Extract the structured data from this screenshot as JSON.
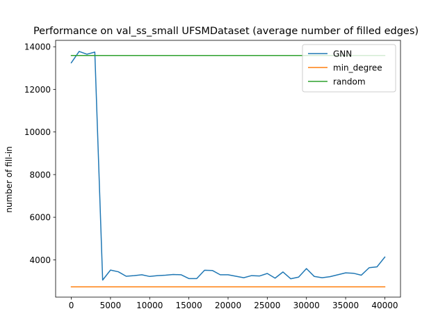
{
  "chart_data": {
    "type": "line",
    "title": "Performance on val_ss_small UFSMDataset (average number of filled edges)",
    "xlabel": "",
    "ylabel": "number of fill-in",
    "xlim": [
      -2000,
      42000
    ],
    "ylim": [
      2250,
      14300
    ],
    "xticks": [
      0,
      5000,
      10000,
      15000,
      20000,
      25000,
      30000,
      35000,
      40000
    ],
    "yticks": [
      4000,
      6000,
      8000,
      10000,
      12000,
      14000
    ],
    "grid": false,
    "legend_position": "top-right",
    "series": [
      {
        "name": "GNN",
        "color": "#1f77b4",
        "x": [
          0,
          1000,
          2000,
          3000,
          4000,
          5000,
          6000,
          7000,
          8000,
          9000,
          10000,
          11000,
          12000,
          13000,
          14000,
          15000,
          16000,
          17000,
          18000,
          19000,
          20000,
          21000,
          22000,
          23000,
          24000,
          25000,
          26000,
          27000,
          28000,
          29000,
          30000,
          31000,
          32000,
          33000,
          34000,
          35000,
          36000,
          37000,
          38000,
          39000,
          40000
        ],
        "y": [
          13250,
          13780,
          13650,
          13750,
          3050,
          3520,
          3440,
          3230,
          3260,
          3300,
          3220,
          3260,
          3280,
          3310,
          3300,
          3120,
          3120,
          3510,
          3500,
          3300,
          3300,
          3230,
          3160,
          3260,
          3240,
          3360,
          3140,
          3430,
          3110,
          3190,
          3590,
          3220,
          3160,
          3210,
          3300,
          3390,
          3370,
          3280,
          3630,
          3670,
          4130
        ]
      },
      {
        "name": "min_degree",
        "color": "#ff7f0e",
        "x": [
          0,
          40000
        ],
        "y": [
          2730,
          2730
        ]
      },
      {
        "name": "random",
        "color": "#2ca02c",
        "x": [
          0,
          40000
        ],
        "y": [
          13590,
          13590
        ]
      }
    ]
  }
}
